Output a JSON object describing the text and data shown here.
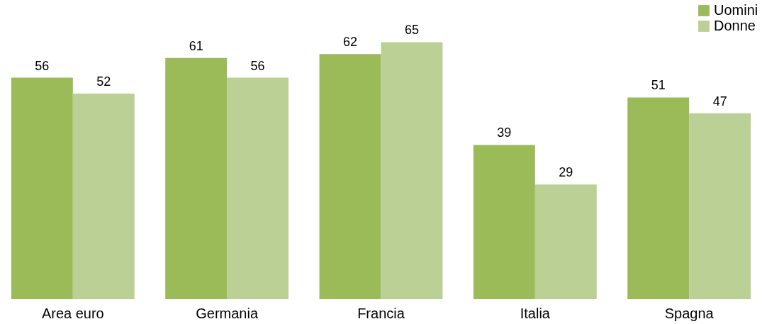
{
  "chart_data": {
    "type": "bar",
    "categories": [
      "Area euro",
      "Germania",
      "Francia",
      "Italia",
      "Spagna"
    ],
    "series": [
      {
        "name": "Uomini",
        "color": "#9bbb59",
        "values": [
          56,
          61,
          62,
          39,
          51
        ]
      },
      {
        "name": "Donne",
        "color": "#bad095",
        "values": [
          52,
          56,
          65,
          29,
          47
        ]
      }
    ],
    "data_labels": true,
    "legend": "top right",
    "grid": false
  }
}
